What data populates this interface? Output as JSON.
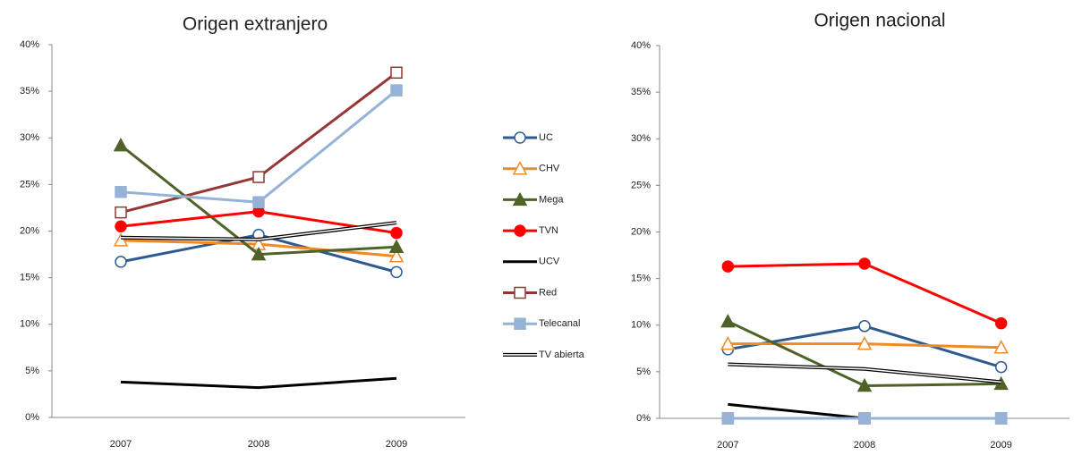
{
  "chart_data": [
    {
      "type": "line",
      "title": "Origen  extranjero",
      "categories": [
        "2007",
        "2008",
        "2009"
      ],
      "ylim": [
        0,
        40
      ],
      "yticks": [
        {
          "value": 0,
          "label": "0%"
        },
        {
          "value": 5,
          "label": "5%"
        },
        {
          "value": 10,
          "label": "10%"
        },
        {
          "value": 15,
          "label": "15%"
        },
        {
          "value": 20,
          "label": "20%"
        },
        {
          "value": 25,
          "label": "25%"
        },
        {
          "value": 30,
          "label": "30%"
        },
        {
          "value": 35,
          "label": "35%"
        },
        {
          "value": 40,
          "label": "40%"
        }
      ],
      "series": [
        {
          "name": "UC",
          "color": "#2e5a94",
          "marker": "circle-open",
          "values": [
            16.7,
            19.6,
            15.6
          ]
        },
        {
          "name": "CHV",
          "color": "#f08a24",
          "marker": "triangle-open",
          "values": [
            19.0,
            18.6,
            17.3
          ]
        },
        {
          "name": "Mega",
          "color": "#4f6228",
          "marker": "triangle",
          "values": [
            29.2,
            17.5,
            18.3
          ]
        },
        {
          "name": "TVN",
          "color": "#ff0000",
          "marker": "circle",
          "values": [
            20.5,
            22.1,
            19.8
          ]
        },
        {
          "name": "UCV",
          "color": "#000000",
          "marker": "none",
          "values": [
            3.8,
            3.2,
            4.2
          ]
        },
        {
          "name": "Red",
          "color": "#953735",
          "marker": "square-open",
          "values": [
            22.0,
            25.8,
            37.0
          ]
        },
        {
          "name": "Telecanal",
          "color": "#95b3d7",
          "marker": "square",
          "values": [
            24.2,
            23.1,
            35.1
          ]
        },
        {
          "name": "TV abierta",
          "color": "#000000",
          "marker": "double",
          "values": [
            19.3,
            19.1,
            20.9
          ]
        }
      ]
    },
    {
      "type": "line",
      "title": "Origen nacional",
      "categories": [
        "2007",
        "2008",
        "2009"
      ],
      "ylim": [
        0,
        40
      ],
      "yticks": [
        {
          "value": 0,
          "label": "0%"
        },
        {
          "value": 5,
          "label": "5%"
        },
        {
          "value": 10,
          "label": "10%"
        },
        {
          "value": 15,
          "label": "15%"
        },
        {
          "value": 20,
          "label": "20%"
        },
        {
          "value": 25,
          "label": "25%"
        },
        {
          "value": 30,
          "label": "30%"
        },
        {
          "value": 35,
          "label": "35%"
        },
        {
          "value": 40,
          "label": "40%"
        }
      ],
      "series": [
        {
          "color": "#2e5a94",
          "marker": "circle-open",
          "values": [
            7.4,
            9.9,
            5.5
          ]
        },
        {
          "color": "#f08a24",
          "marker": "triangle-open",
          "values": [
            8.0,
            8.0,
            7.6
          ]
        },
        {
          "color": "#4f6228",
          "marker": "triangle",
          "values": [
            10.4,
            3.5,
            3.7
          ]
        },
        {
          "color": "#ff0000",
          "marker": "circle",
          "values": [
            16.3,
            16.6,
            10.2
          ]
        },
        {
          "color": "#000000",
          "marker": "none",
          "values": [
            1.5,
            0,
            0
          ]
        },
        {
          "color": "#953735",
          "marker": "square-open",
          "values": [
            0,
            0,
            0
          ]
        },
        {
          "color": "#95b3d7",
          "marker": "square",
          "values": [
            0,
            0,
            0
          ]
        },
        {
          "color": "#000000",
          "marker": "double",
          "values": [
            5.8,
            5.3,
            3.9
          ]
        }
      ]
    }
  ]
}
